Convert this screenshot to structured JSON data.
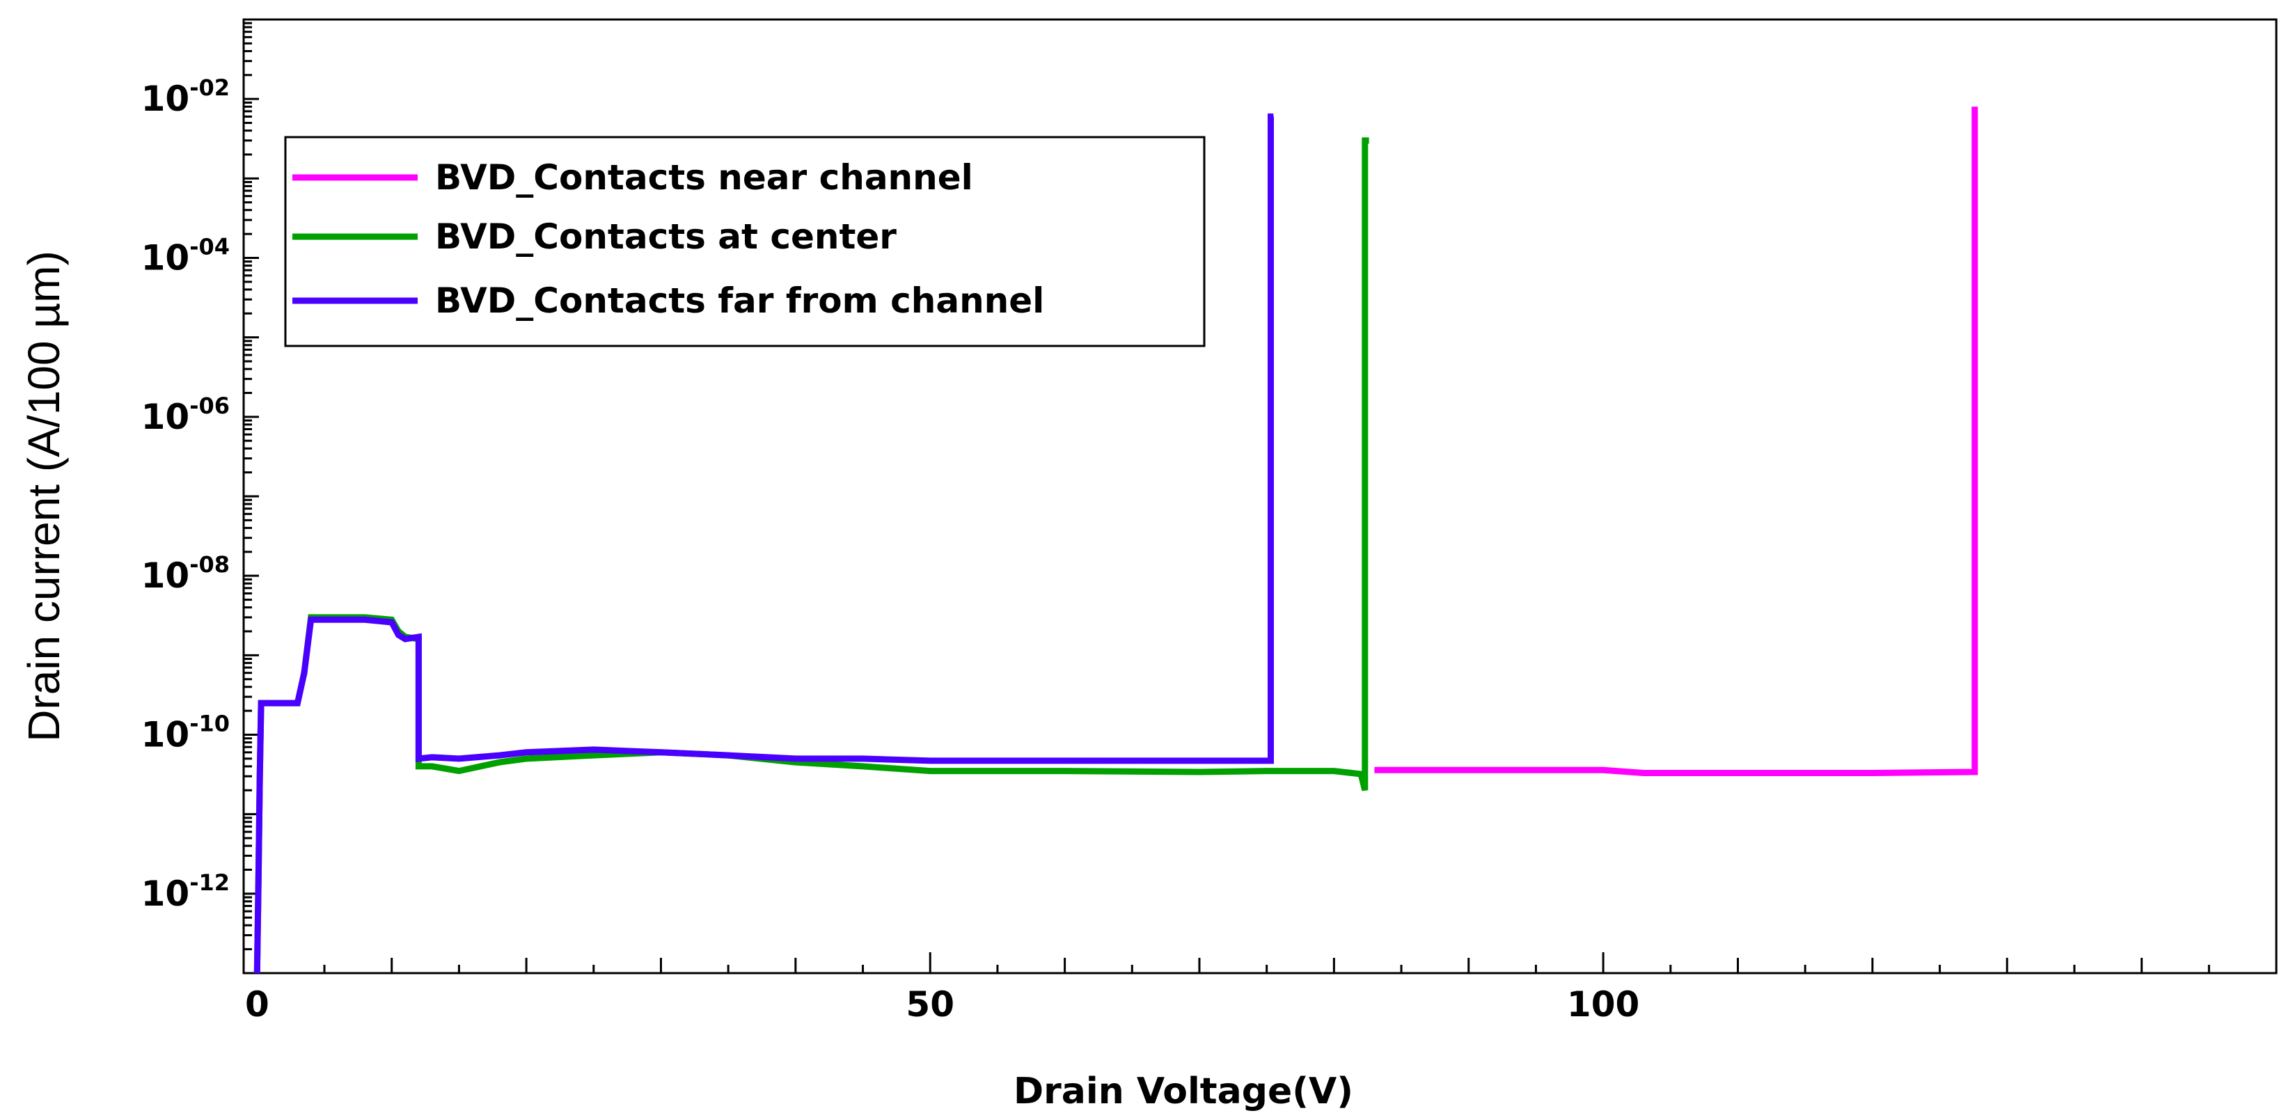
{
  "chart_data": {
    "type": "line",
    "xlabel": "Drain Voltage(V)",
    "ylabel": "Drain current (A/100 µm)",
    "x_scale": "linear",
    "y_scale": "log",
    "xlim": [
      -1,
      150
    ],
    "ylim": [
      1e-13,
      0.1
    ],
    "x_ticks": [
      0,
      50,
      100
    ],
    "y_ticks": [
      {
        "base": "10",
        "exp": "-02",
        "value": 0.01
      },
      {
        "base": "10",
        "exp": "-04",
        "value": 0.0001
      },
      {
        "base": "10",
        "exp": "-06",
        "value": 1e-06
      },
      {
        "base": "10",
        "exp": "-08",
        "value": 1e-08
      },
      {
        "base": "10",
        "exp": "-10",
        "value": 1e-10
      },
      {
        "base": "10",
        "exp": "-12",
        "value": 1e-12
      }
    ],
    "grid": false,
    "legend_position": "top-left",
    "series": [
      {
        "name": "BVD_Contacts near channel",
        "color": "#ff00ff",
        "x": [
          83,
          90,
          100,
          103,
          110,
          120,
          127.5,
          127.6,
          127.6
        ],
        "y": [
          3.6e-11,
          3.6e-11,
          3.6e-11,
          3.3e-11,
          3.3e-11,
          3.3e-11,
          3.4e-11,
          3.4e-11,
          0.008
        ]
      },
      {
        "name": "BVD_Contacts at center",
        "color": "#00a000",
        "x": [
          0,
          0.1,
          0.2,
          0.3,
          0.5,
          1,
          3,
          3.5,
          4,
          6,
          8,
          10,
          10.5,
          11,
          12,
          12,
          13,
          15,
          18,
          20,
          25,
          30,
          35,
          40,
          45,
          50,
          55,
          60,
          70,
          75,
          80,
          82,
          82.3,
          82.3,
          82.6
        ],
        "y": [
          1e-13,
          1.5e-12,
          3e-11,
          2.5e-10,
          2.5e-10,
          2.5e-10,
          2.5e-10,
          6e-10,
          3e-09,
          3e-09,
          3e-09,
          2.8e-09,
          2e-09,
          1.7e-09,
          1.6e-09,
          4e-11,
          4e-11,
          3.5e-11,
          4.5e-11,
          5e-11,
          5.5e-11,
          6e-11,
          5.5e-11,
          4.5e-11,
          4e-11,
          3.5e-11,
          3.5e-11,
          3.5e-11,
          3.4e-11,
          3.5e-11,
          3.5e-11,
          3.2e-11,
          2e-11,
          0.003,
          0.003
        ]
      },
      {
        "name": "BVD_Contacts far from channel",
        "color": "#4a00ff",
        "x": [
          0,
          0.1,
          0.2,
          0.3,
          0.5,
          1,
          3,
          3.5,
          4,
          6,
          8,
          10,
          10.5,
          11,
          12,
          12,
          13,
          15,
          18,
          20,
          25,
          30,
          35,
          40,
          45,
          50,
          55,
          60,
          65,
          70,
          75.3,
          75.3,
          75.5
        ],
        "y": [
          1e-13,
          1.5e-12,
          3e-11,
          2.5e-10,
          2.5e-10,
          2.5e-10,
          2.5e-10,
          6e-10,
          2.8e-09,
          2.8e-09,
          2.8e-09,
          2.6e-09,
          1.8e-09,
          1.6e-09,
          1.7e-09,
          5e-11,
          5.2e-11,
          5e-11,
          5.5e-11,
          6e-11,
          6.5e-11,
          6e-11,
          5.5e-11,
          5e-11,
          5e-11,
          4.7e-11,
          4.7e-11,
          4.7e-11,
          4.7e-11,
          4.7e-11,
          4.7e-11,
          0.006,
          0.006
        ]
      }
    ]
  }
}
